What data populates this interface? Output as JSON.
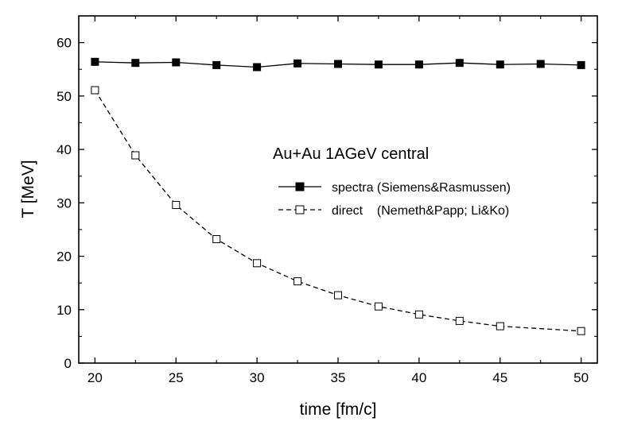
{
  "chart_data": {
    "type": "line",
    "xlabel": "time   [fm/c]",
    "ylabel": "T  [MeV]",
    "xlim": [
      19,
      51
    ],
    "ylim": [
      0,
      65
    ],
    "xticks": [
      20,
      25,
      30,
      35,
      40,
      45,
      50
    ],
    "yticks": [
      0,
      10,
      20,
      30,
      40,
      50,
      60
    ],
    "grid": false,
    "legend_title": "Au+Au 1AGeV central",
    "legend_position": "center-right",
    "series": [
      {
        "name": "spectra (Siemens&Rasmussen)",
        "marker": "filled-square",
        "line": "solid",
        "color": "#000000",
        "x": [
          20,
          22.5,
          25,
          27.5,
          30,
          32.5,
          35,
          37.5,
          40,
          42.5,
          45,
          47.5,
          50
        ],
        "y": [
          56.4,
          56.2,
          56.3,
          55.8,
          55.4,
          56.1,
          56.0,
          55.9,
          55.9,
          56.2,
          55.9,
          56.0,
          55.8
        ]
      },
      {
        "name": "direct    (Nemeth&Papp; Li&Ko)",
        "marker": "open-square",
        "line": "dashed",
        "color": "#000000",
        "x": [
          20,
          22.5,
          25,
          27.5,
          30,
          32.5,
          35,
          37.5,
          40,
          42.5,
          45,
          50
        ],
        "y": [
          51.1,
          38.9,
          29.6,
          23.2,
          18.7,
          15.3,
          12.7,
          10.6,
          9.1,
          7.9,
          6.9,
          6.0
        ]
      }
    ]
  }
}
